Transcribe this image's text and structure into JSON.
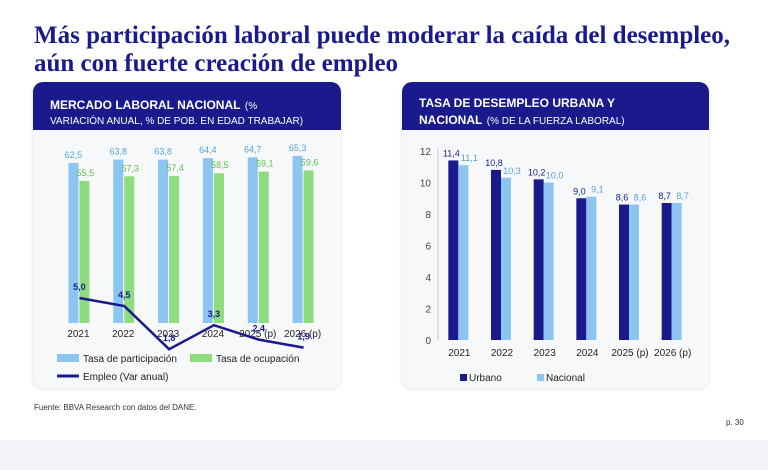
{
  "title": "Más participación laboral puede moderar la caída del desempleo, aún con fuerte creación de empleo",
  "colors": {
    "navy": "#1b1a8c",
    "lightBlue": "#8cc5f1",
    "lightGreen": "#8edc7e"
  },
  "left_card": {
    "heading": "MERCADO LABORAL NACIONAL",
    "heading_sub": "(%",
    "heading_line2": "VARIACIÓN ANUAL, % DE POB. EN EDAD TRABAJAR)"
  },
  "right_card": {
    "heading_line1": "TASA DE DESEMPLEO URBANA Y",
    "heading_line2_bold": "NACIONAL",
    "heading_line2_sub": "(% DE LA FUERZA LABORAL)"
  },
  "chart_data": [
    {
      "type": "bar",
      "title": "MERCADO LABORAL NACIONAL (% VARIACIÓN ANUAL, % DE POB. EN EDAD TRABAJAR)",
      "categories": [
        "2021",
        "2022",
        "2023",
        "2024",
        "2025 (p)",
        "2026 (p)"
      ],
      "series": [
        {
          "name": "Tasa de participación",
          "type": "bar",
          "values": [
            62.5,
            63.8,
            63.8,
            64.4,
            64.7,
            65.3
          ],
          "labels": [
            "62,5",
            "63,8",
            "63,8",
            "64,4",
            "64,7",
            "65,3"
          ],
          "color": "#8cc5f1"
        },
        {
          "name": "Tasa de ocupación",
          "type": "bar",
          "values": [
            55.5,
            57.3,
            57.4,
            58.5,
            59.1,
            59.6
          ],
          "labels": [
            "55,5",
            "57,3",
            "57,4",
            "58,5",
            "59,1",
            "59,6"
          ],
          "color": "#8edc7e"
        },
        {
          "name": "Empleo (Var anual)",
          "type": "line",
          "values": [
            5.0,
            4.5,
            1.8,
            3.3,
            2.4,
            1.9
          ],
          "labels": [
            "5,0",
            "4,5",
            "1,8",
            "3,3",
            "2,4",
            "1,9"
          ],
          "color": "#1b1a8c"
        }
      ],
      "legend": [
        "Tasa de participación",
        "Tasa de ocupación",
        "Empleo (Var anual)"
      ]
    },
    {
      "type": "bar",
      "title": "TASA DE DESEMPLEO URBANA Y NACIONAL (% DE LA FUERZA LABORAL)",
      "categories": [
        "2021",
        "2022",
        "2023",
        "2024",
        "2025 (p)",
        "2026 (p)"
      ],
      "ylim": [
        0,
        12
      ],
      "yticks": [
        "0",
        "2",
        "4",
        "6",
        "8",
        "10",
        "12"
      ],
      "series": [
        {
          "name": "Urbano",
          "values": [
            11.4,
            10.8,
            10.2,
            9.0,
            8.6,
            8.7
          ],
          "labels": [
            "11,4",
            "10,8",
            "10,2",
            "9,0",
            "8,6",
            "8,7"
          ],
          "color": "#1b1a8c"
        },
        {
          "name": "Nacional",
          "values": [
            11.1,
            10.3,
            10.0,
            9.1,
            8.6,
            8.7
          ],
          "labels": [
            "11,1",
            "10,3",
            "10,0",
            "9,1",
            "8,6",
            "8,7"
          ],
          "color": "#8cc5f1"
        }
      ],
      "legend": [
        "Urbano",
        "Nacional"
      ]
    }
  ],
  "source": "Fuente: BBVA Research con datos del DANE.",
  "page_number": "p. 30"
}
